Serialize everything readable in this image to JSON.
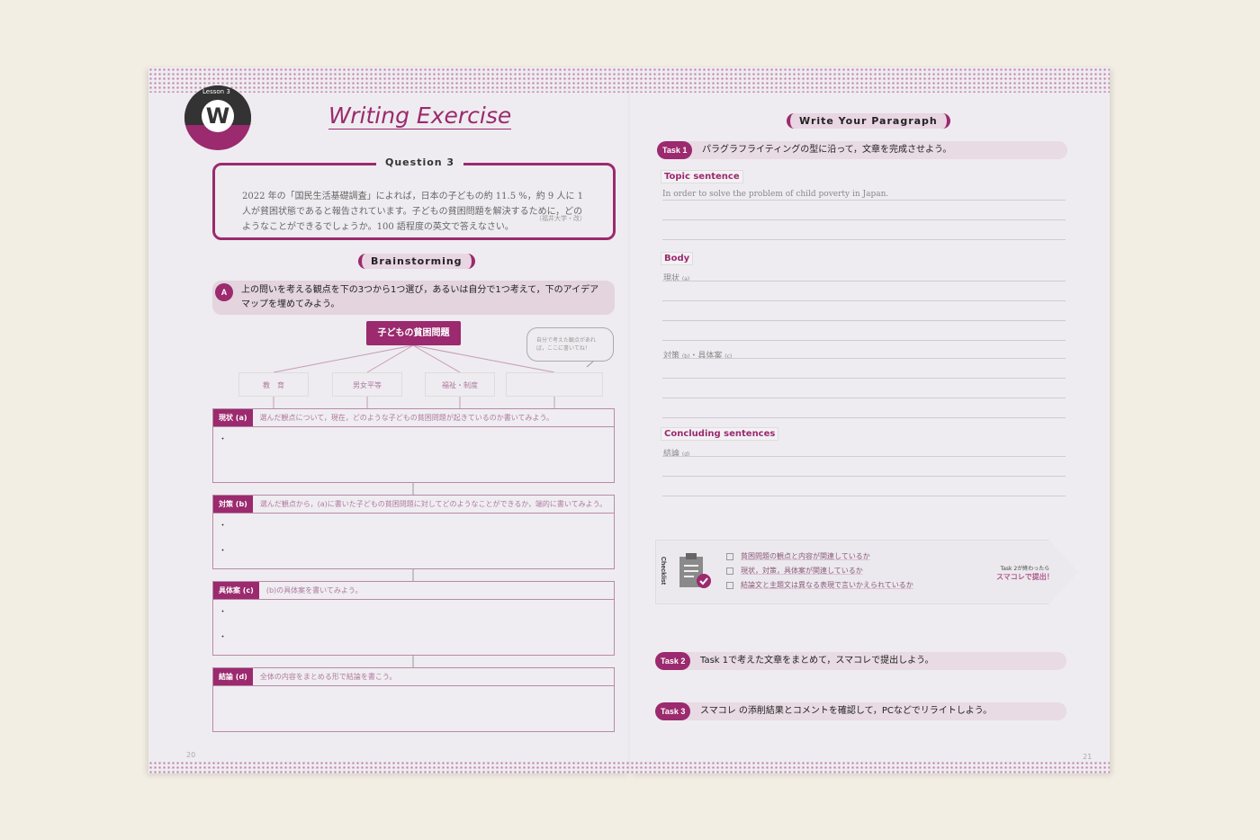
{
  "left_page": {
    "lesson": "Lesson 3",
    "logo_letter": "W",
    "title": "Writing Exercise",
    "question": {
      "label": "Question 3",
      "text": "2022 年の「国民生活基礎調査」によれば，日本の子どもの約 11.5 %，約 9 人に 1 人が貧困状態であると報告されています。子どもの貧困問題を解決するために，どのようなことができるでしょうか。100 語程度の英文で答えなさい。",
      "source": "（福井大学・改）"
    },
    "brainstorming": "Brainstorming",
    "instruction": {
      "badge": "A",
      "text": "上の問いを考える観点を下の3つから1つ選び，あるいは自分で1つ考えて，下のアイデアマップを埋めてみよう。"
    },
    "map": {
      "root": "子どもの貧困問題",
      "nodes": [
        "教　育",
        "男女平等",
        "福祉・制度",
        ""
      ],
      "bubble": "自分で考えた観点があれば，ここに書いてね！"
    },
    "sections": [
      {
        "tag": "現状 (a)",
        "prompt": "選んだ観点について，現在，どのような子どもの貧困問題が起きているのか書いてみよう。",
        "bullets": [
          "・"
        ]
      },
      {
        "tag": "対策 (b)",
        "prompt": "選んだ観点から，(a)に書いた子どもの貧困問題に対してどのようなことができるか，端的に書いてみよう。",
        "bullets": [
          "・",
          "・"
        ]
      },
      {
        "tag": "具体案 (c)",
        "prompt": "(b)の具体案を書いてみよう。",
        "bullets": [
          "・",
          "・"
        ]
      },
      {
        "tag": "結論 (d)",
        "prompt": "全体の内容をまとめる形で結論を書こう。",
        "bullets": []
      }
    ],
    "page_number": "20"
  },
  "right_page": {
    "heading": "Write Your Paragraph",
    "task1": {
      "badge": "Task 1",
      "text": "パラグラフライティングの型に沿って，文章を完成させよう。"
    },
    "topic_label": "Topic sentence",
    "topic_text": "In order to solve the problem of child poverty in Japan.",
    "body_label": "Body",
    "body_a": "現状",
    "body_a_mark": "(a)",
    "body_b": "対策",
    "body_b_mark": "(b)",
    "body_c": "・具体案",
    "body_c_mark": "(c)",
    "concl_label": "Concluding sentences",
    "concl": "結論",
    "concl_mark": "(d)",
    "checklist": {
      "label": "Checklist",
      "items": [
        "貧困問題の観点と内容が関連しているか",
        "現状，対策，具体案が関連しているか",
        "結論文と主題文は異なる表現で言いかえられているか"
      ],
      "submit_line1": "Task 2が終わったら",
      "submit_line2": "スマコレで提出！"
    },
    "task2": {
      "badge": "Task 2",
      "text": "Task 1で考えた文章をまとめて，スマコレで提出しよう。"
    },
    "task3": {
      "badge": "Task 3",
      "text": "スマコレ の添削結果とコメントを確認して，PCなどでリライトしよう。"
    },
    "page_number": "21"
  },
  "colors": {
    "accent": "#9b2a6e",
    "background": "#f2eee4",
    "paper": "#eeecf0"
  }
}
